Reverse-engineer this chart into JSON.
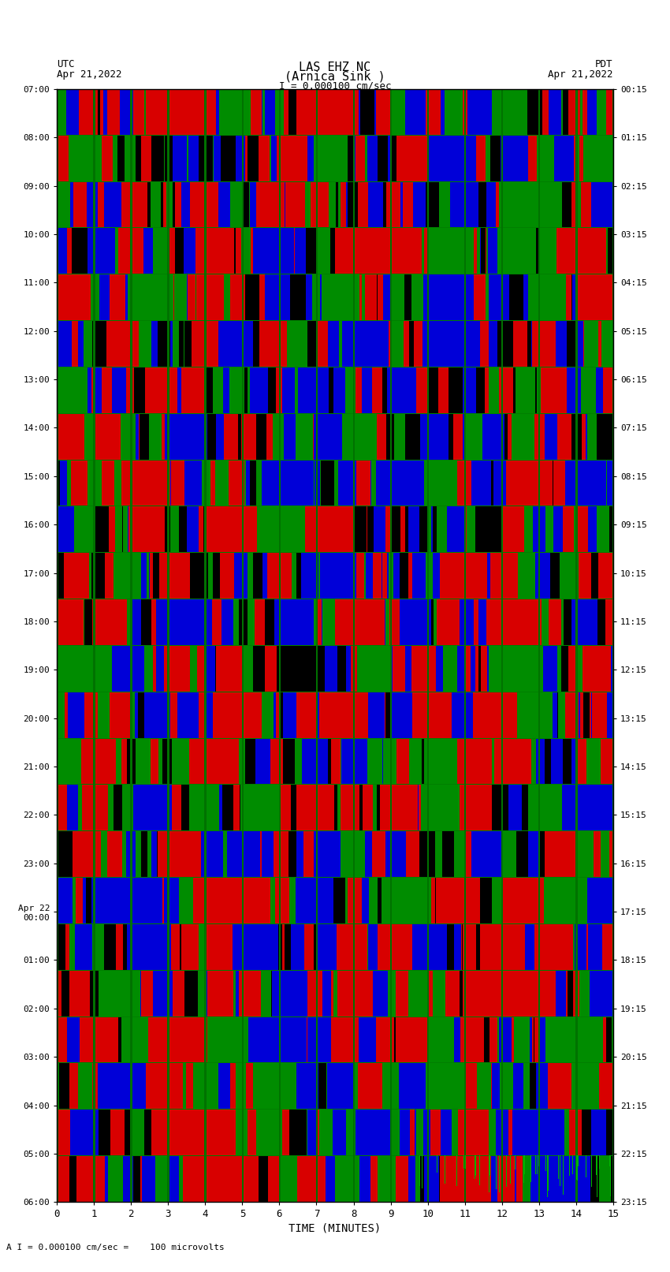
{
  "title_line1": "LAS EHZ NC",
  "title_line2": "(Arnica Sink )",
  "scale_label": "I = 0.000100 cm/sec",
  "left_label_top": "UTC",
  "left_label_date": "Apr 21,2022",
  "right_label_top": "PDT",
  "right_label_date": "Apr 21,2022",
  "footer_label": "A I = 0.000100 cm/sec =    100 microvolts",
  "xlabel": "TIME (MINUTES)",
  "ytick_left": [
    "07:00",
    "08:00",
    "09:00",
    "10:00",
    "11:00",
    "12:00",
    "13:00",
    "14:00",
    "15:00",
    "16:00",
    "17:00",
    "18:00",
    "19:00",
    "20:00",
    "21:00",
    "22:00",
    "23:00",
    "Apr 22\n00:00",
    "01:00",
    "02:00",
    "03:00",
    "04:00",
    "05:00",
    "06:00"
  ],
  "ytick_right": [
    "00:15",
    "01:15",
    "02:15",
    "03:15",
    "04:15",
    "05:15",
    "06:15",
    "07:15",
    "08:15",
    "09:15",
    "10:15",
    "11:15",
    "12:15",
    "13:15",
    "14:15",
    "15:15",
    "16:15",
    "17:15",
    "18:15",
    "19:15",
    "20:15",
    "21:15",
    "22:15",
    "23:15"
  ],
  "num_rows": 24,
  "x_max": 15,
  "background_color": "#ffffff",
  "seed": 42
}
